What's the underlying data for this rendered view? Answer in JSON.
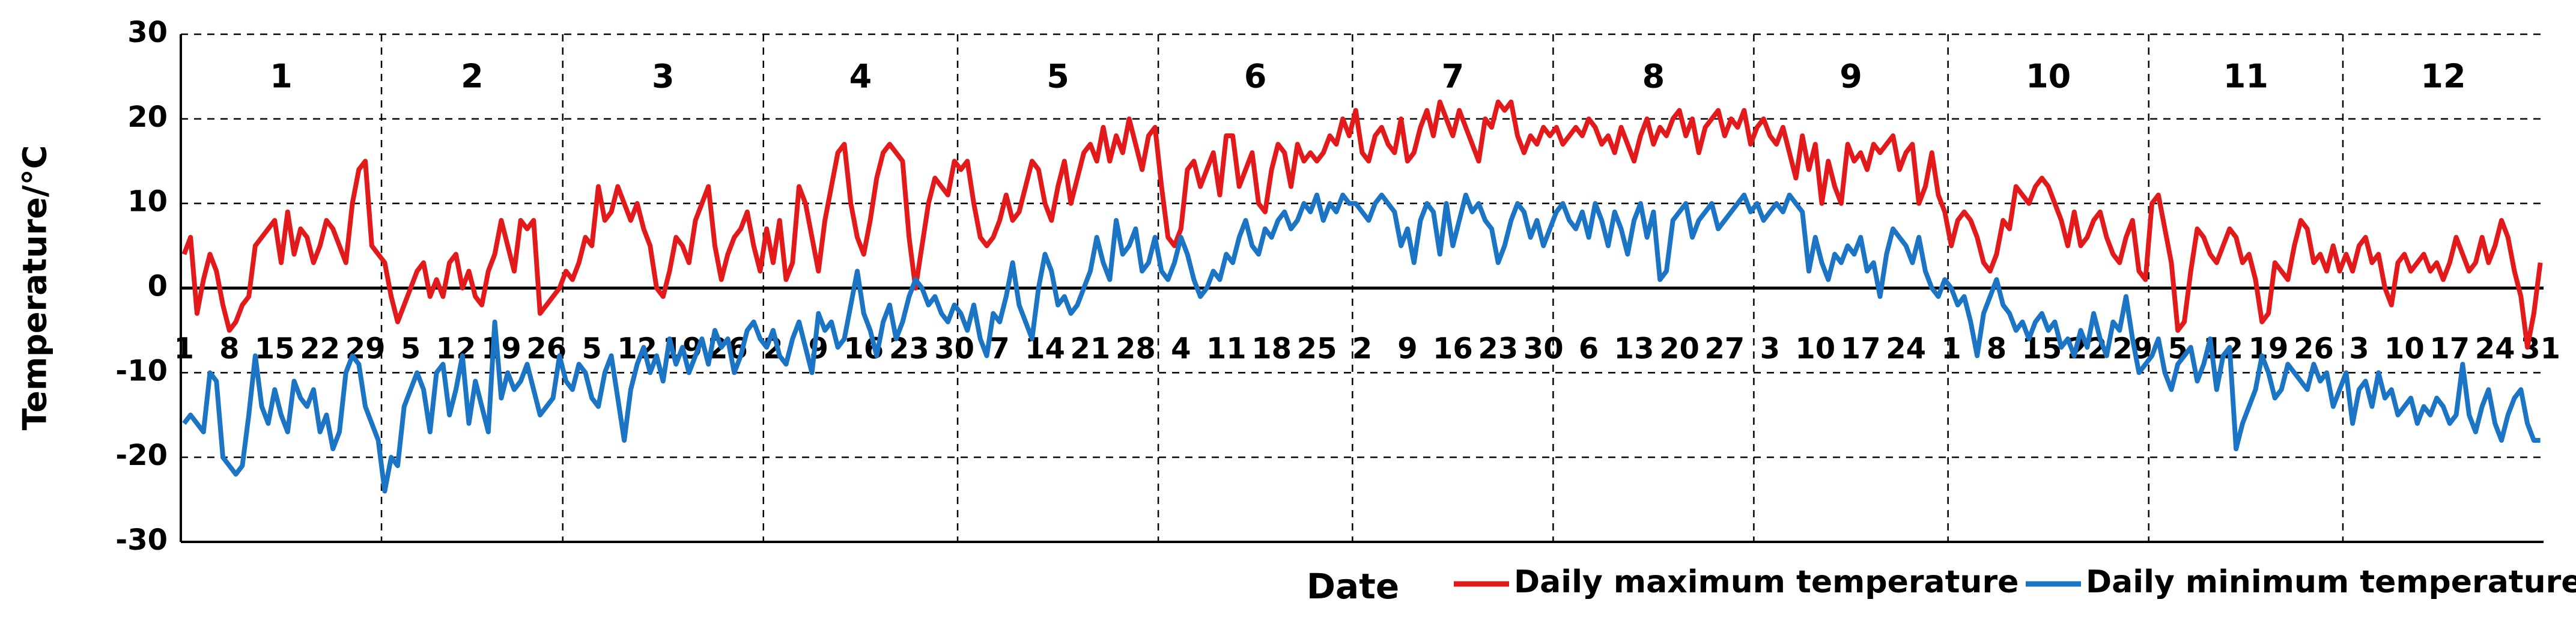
{
  "chart_data": {
    "type": "line",
    "x_label": "Date",
    "y_label": "Temperature/°C",
    "ylim": [
      -30,
      30
    ],
    "yticks": [
      -30,
      -20,
      -10,
      0,
      10,
      20,
      30
    ],
    "grid": true,
    "months": [
      "1",
      "2",
      "3",
      "4",
      "5",
      "6",
      "7",
      "8",
      "9",
      "10",
      "11",
      "12"
    ],
    "month_lengths": [
      31,
      28,
      31,
      30,
      31,
      30,
      31,
      31,
      30,
      31,
      30,
      31
    ],
    "categories": [
      "1",
      null,
      null,
      null,
      null,
      null,
      null,
      "8",
      null,
      null,
      null,
      null,
      null,
      null,
      "15",
      null,
      null,
      null,
      null,
      null,
      null,
      "22",
      null,
      null,
      null,
      null,
      null,
      null,
      "29",
      null,
      null,
      null,
      null,
      null,
      null,
      "5",
      null,
      null,
      null,
      null,
      null,
      null,
      "12",
      null,
      null,
      null,
      null,
      null,
      null,
      "19",
      null,
      null,
      null,
      null,
      null,
      null,
      "26",
      null,
      null,
      null,
      null,
      null,
      null,
      "5",
      null,
      null,
      null,
      null,
      null,
      null,
      "12",
      null,
      null,
      null,
      null,
      null,
      null,
      "19",
      null,
      null,
      null,
      null,
      null,
      null,
      "26",
      null,
      null,
      null,
      null,
      null,
      null,
      "2",
      null,
      null,
      null,
      null,
      null,
      null,
      "9",
      null,
      null,
      null,
      null,
      null,
      null,
      "16",
      null,
      null,
      null,
      null,
      null,
      null,
      "23",
      null,
      null,
      null,
      null,
      null,
      null,
      "30",
      null,
      null,
      null,
      null,
      null,
      null,
      "7",
      null,
      null,
      null,
      null,
      null,
      null,
      "14",
      null,
      null,
      null,
      null,
      null,
      null,
      "21",
      null,
      null,
      null,
      null,
      null,
      null,
      "28",
      null,
      null,
      null,
      null,
      null,
      null,
      "4",
      null,
      null,
      null,
      null,
      null,
      null,
      "11",
      null,
      null,
      null,
      null,
      null,
      null,
      "18",
      null,
      null,
      null,
      null,
      null,
      null,
      "25",
      null,
      null,
      null,
      null,
      null,
      null,
      "2",
      null,
      null,
      null,
      null,
      null,
      null,
      "9",
      null,
      null,
      null,
      null,
      null,
      null,
      "16",
      null,
      null,
      null,
      null,
      null,
      null,
      "23",
      null,
      null,
      null,
      null,
      null,
      null,
      "30",
      null,
      null,
      null,
      null,
      null,
      null,
      "6",
      null,
      null,
      null,
      null,
      null,
      null,
      "13",
      null,
      null,
      null,
      null,
      null,
      null,
      "20",
      null,
      null,
      null,
      null,
      null,
      null,
      "27",
      null,
      null,
      null,
      null,
      null,
      null,
      "3",
      null,
      null,
      null,
      null,
      null,
      null,
      "10",
      null,
      null,
      null,
      null,
      null,
      null,
      "17",
      null,
      null,
      null,
      null,
      null,
      null,
      "24",
      null,
      null,
      null,
      null,
      null,
      null,
      "1",
      null,
      null,
      null,
      null,
      null,
      null,
      "8",
      null,
      null,
      null,
      null,
      null,
      null,
      "15",
      null,
      null,
      null,
      null,
      null,
      null,
      "22",
      null,
      null,
      null,
      null,
      null,
      null,
      "29",
      null,
      null,
      null,
      null,
      null,
      null,
      "5",
      null,
      null,
      null,
      null,
      null,
      null,
      "12",
      null,
      null,
      null,
      null,
      null,
      null,
      "19",
      null,
      null,
      null,
      null,
      null,
      null,
      "26",
      null,
      null,
      null,
      null,
      null,
      null,
      "3",
      null,
      null,
      null,
      null,
      null,
      null,
      "10",
      null,
      null,
      null,
      null,
      null,
      null,
      "17",
      null,
      null,
      null,
      null,
      null,
      null,
      "24",
      null,
      null,
      null,
      null,
      null,
      null,
      "31"
    ],
    "series": [
      {
        "name": "Daily maximum temperature",
        "color": "#e31a1c",
        "values": [
          4,
          6,
          -3,
          1,
          4,
          2,
          -2,
          -5,
          -4,
          -2,
          -1,
          5,
          6,
          7,
          8,
          3,
          9,
          4,
          7,
          6,
          3,
          5,
          8,
          7,
          5,
          3,
          10,
          14,
          15,
          5,
          4,
          3,
          -1,
          -4,
          -2,
          0,
          2,
          3,
          -1,
          1,
          -1,
          3,
          4,
          0,
          2,
          -1,
          -2,
          2,
          4,
          8,
          5,
          2,
          8,
          7,
          8,
          -3,
          -2,
          -1,
          0,
          2,
          1,
          3,
          6,
          5,
          12,
          8,
          9,
          12,
          10,
          8,
          10,
          7,
          5,
          0,
          -1,
          2,
          6,
          5,
          3,
          8,
          10,
          12,
          5,
          1,
          4,
          6,
          7,
          9,
          5,
          2,
          7,
          3,
          8,
          1,
          3,
          12,
          10,
          6,
          2,
          8,
          12,
          16,
          17,
          10,
          6,
          4,
          8,
          13,
          16,
          17,
          16,
          15,
          6,
          0,
          5,
          10,
          13,
          12,
          11,
          15,
          14,
          15,
          10,
          6,
          5,
          6,
          8,
          11,
          8,
          9,
          12,
          15,
          14,
          10,
          8,
          12,
          15,
          10,
          13,
          16,
          17,
          15,
          19,
          15,
          18,
          16,
          20,
          17,
          14,
          18,
          19,
          12,
          6,
          5,
          7,
          14,
          15,
          12,
          14,
          16,
          11,
          18,
          18,
          12,
          14,
          16,
          10,
          9,
          14,
          17,
          16,
          12,
          17,
          15,
          16,
          15,
          16,
          18,
          17,
          20,
          18,
          21,
          16,
          15,
          18,
          19,
          17,
          16,
          20,
          15,
          16,
          19,
          21,
          18,
          22,
          20,
          18,
          21,
          19,
          17,
          15,
          20,
          19,
          22,
          21,
          22,
          18,
          16,
          18,
          17,
          19,
          18,
          19,
          17,
          18,
          19,
          18,
          20,
          19,
          17,
          18,
          16,
          19,
          17,
          15,
          18,
          20,
          17,
          19,
          18,
          20,
          21,
          18,
          20,
          16,
          19,
          20,
          21,
          18,
          20,
          19,
          21,
          17,
          19,
          20,
          18,
          17,
          19,
          16,
          13,
          18,
          14,
          17,
          10,
          15,
          12,
          10,
          17,
          15,
          16,
          14,
          17,
          16,
          17,
          18,
          14,
          16,
          17,
          10,
          12,
          16,
          11,
          9,
          5,
          8,
          9,
          8,
          6,
          3,
          2,
          4,
          8,
          7,
          12,
          11,
          10,
          12,
          13,
          12,
          10,
          8,
          5,
          9,
          5,
          6,
          8,
          9,
          6,
          4,
          3,
          6,
          8,
          2,
          1,
          10,
          11,
          7,
          3,
          -5,
          -4,
          2,
          7,
          6,
          4,
          3,
          5,
          7,
          6,
          3,
          4,
          1,
          -4,
          -3,
          3,
          2,
          1,
          5,
          8,
          7,
          3,
          4,
          2,
          5,
          2,
          4,
          2,
          5,
          6,
          3,
          4,
          0,
          -2,
          3,
          4,
          2,
          3,
          4,
          2,
          3,
          1,
          3,
          6,
          4,
          2,
          3,
          6,
          3,
          5,
          8,
          6,
          2,
          -1,
          -7,
          -3,
          3
        ]
      },
      {
        "name": "Daily minimum temperature",
        "color": "#1b75c4",
        "values": [
          -16,
          -15,
          -16,
          -17,
          -10,
          -11,
          -20,
          -21,
          -22,
          -21,
          -15,
          -8,
          -14,
          -16,
          -12,
          -15,
          -17,
          -11,
          -13,
          -14,
          -12,
          -17,
          -15,
          -19,
          -17,
          -10,
          -8,
          -9,
          -14,
          -16,
          -18,
          -24,
          -20,
          -21,
          -14,
          -12,
          -10,
          -12,
          -17,
          -10,
          -9,
          -15,
          -12,
          -8,
          -16,
          -11,
          -14,
          -17,
          -4,
          -13,
          -10,
          -12,
          -11,
          -9,
          -12,
          -15,
          -14,
          -13,
          -8,
          -11,
          -12,
          -9,
          -10,
          -13,
          -14,
          -10,
          -8,
          -13,
          -18,
          -12,
          -9,
          -7,
          -10,
          -8,
          -11,
          -6,
          -9,
          -7,
          -10,
          -8,
          -6,
          -9,
          -5,
          -7,
          -6,
          -10,
          -8,
          -5,
          -4,
          -6,
          -7,
          -5,
          -8,
          -9,
          -6,
          -4,
          -7,
          -10,
          -3,
          -5,
          -4,
          -7,
          -6,
          -2,
          2,
          -3,
          -5,
          -8,
          -4,
          -2,
          -6,
          -4,
          -1,
          1,
          0,
          -2,
          -1,
          -3,
          -4,
          -2,
          -3,
          -5,
          -2,
          -6,
          -8,
          -3,
          -4,
          -1,
          3,
          -2,
          -4,
          -6,
          0,
          4,
          2,
          -2,
          -1,
          -3,
          -2,
          0,
          2,
          6,
          3,
          1,
          8,
          4,
          5,
          7,
          2,
          3,
          6,
          2,
          1,
          3,
          6,
          4,
          1,
          -1,
          0,
          2,
          1,
          4,
          3,
          6,
          8,
          5,
          4,
          7,
          6,
          8,
          9,
          7,
          8,
          10,
          9,
          11,
          8,
          10,
          9,
          11,
          10,
          10,
          9,
          8,
          10,
          11,
          10,
          9,
          5,
          7,
          3,
          8,
          10,
          9,
          4,
          10,
          5,
          8,
          11,
          9,
          10,
          8,
          7,
          3,
          5,
          8,
          10,
          9,
          6,
          8,
          5,
          7,
          9,
          10,
          8,
          7,
          9,
          6,
          10,
          8,
          5,
          9,
          7,
          4,
          8,
          10,
          6,
          9,
          1,
          2,
          8,
          9,
          10,
          6,
          8,
          9,
          10,
          7,
          8,
          9,
          10,
          11,
          9,
          10,
          8,
          9,
          10,
          9,
          11,
          10,
          9,
          2,
          6,
          3,
          1,
          4,
          3,
          5,
          4,
          6,
          2,
          3,
          -1,
          4,
          7,
          6,
          5,
          3,
          6,
          2,
          0,
          -1,
          1,
          0,
          -2,
          -1,
          -4,
          -8,
          -3,
          -1,
          1,
          -2,
          -3,
          -5,
          -4,
          -6,
          -4,
          -3,
          -5,
          -4,
          -7,
          -6,
          -8,
          -5,
          -7,
          -3,
          -6,
          -8,
          -4,
          -5,
          -1,
          -6,
          -10,
          -9,
          -8,
          -6,
          -10,
          -12,
          -9,
          -8,
          -7,
          -11,
          -9,
          -6,
          -12,
          -8,
          -7,
          -19,
          -16,
          -14,
          -12,
          -8,
          -10,
          -13,
          -12,
          -9,
          -10,
          -11,
          -12,
          -9,
          -11,
          -10,
          -14,
          -12,
          -10,
          -16,
          -12,
          -11,
          -14,
          -10,
          -13,
          -12,
          -15,
          -14,
          -13,
          -16,
          -14,
          -15,
          -13,
          -14,
          -16,
          -15,
          -9,
          -15,
          -17,
          -14,
          -12,
          -16,
          -18,
          -15,
          -13,
          -12,
          -16,
          -18,
          -18
        ]
      }
    ]
  }
}
